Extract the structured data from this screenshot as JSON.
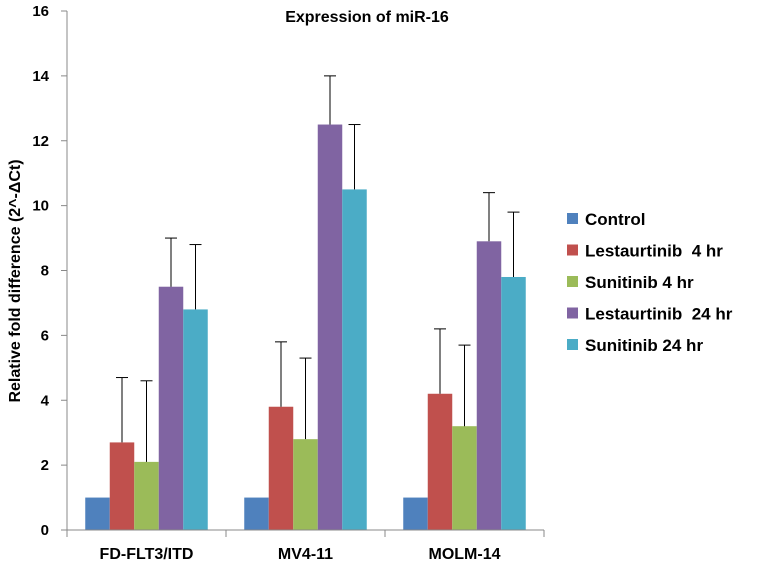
{
  "chart_data": {
    "type": "bar",
    "title": "Expression of miR-16",
    "xlabel": "",
    "ylabel": "Relative fold difference (2^-ΔCt)",
    "ylim": [
      0,
      16
    ],
    "yticks": [
      0,
      2,
      4,
      6,
      8,
      10,
      12,
      14,
      16
    ],
    "grid": false,
    "legend_position": "right",
    "categories": [
      "FD-FLT3/ITD",
      "MV4-11",
      "MOLM-14"
    ],
    "series": [
      {
        "name": "Control",
        "color": "#4F81BD",
        "values": [
          1,
          1,
          1
        ],
        "errors": [
          0,
          0,
          0
        ]
      },
      {
        "name": "Lestaurtinib  4 hr",
        "color": "#C0504D",
        "values": [
          2.7,
          3.8,
          4.2
        ],
        "errors": [
          2.0,
          2.0,
          2.0
        ]
      },
      {
        "name": "Sunitinib 4 hr",
        "color": "#9BBB59",
        "values": [
          2.1,
          2.8,
          3.2
        ],
        "errors": [
          2.5,
          2.5,
          2.5
        ]
      },
      {
        "name": "Lestaurtinib  24 hr",
        "color": "#8064A2",
        "values": [
          7.5,
          12.5,
          8.9
        ],
        "errors": [
          1.5,
          1.5,
          1.5
        ]
      },
      {
        "name": "Sunitinib 24 hr",
        "color": "#4BACC6",
        "values": [
          6.8,
          10.5,
          7.8
        ],
        "errors": [
          2.0,
          2.0,
          2.0
        ]
      }
    ]
  }
}
